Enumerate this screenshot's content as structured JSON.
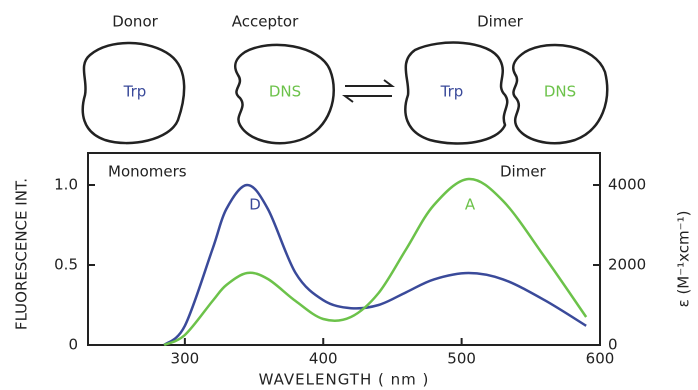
{
  "diagram": {
    "donor_label": "Donor",
    "acceptor_label": "Acceptor",
    "dimer_label": "Dimer",
    "donor_inner": "Trp",
    "acceptor_inner": "DNS",
    "dimer_donor_inner": "Trp",
    "dimer_acceptor_inner": "DNS"
  },
  "chart_data": {
    "type": "line",
    "x_label": "WAVELENGTH ( nm )",
    "y_label": "FLUORESCENCE INT.",
    "y2_label": "ε (M⁻¹xcm⁻¹)",
    "annotations": [
      "Monomers",
      "Dimer",
      "D",
      "A"
    ],
    "x": [
      285,
      300,
      320,
      330,
      345,
      360,
      380,
      400,
      420,
      440,
      460,
      480,
      505,
      530,
      560,
      590
    ],
    "series": [
      {
        "name": "D",
        "color": "#3a4a9a",
        "values": [
          0,
          0.12,
          0.6,
          0.85,
          1.0,
          0.85,
          0.45,
          0.28,
          0.23,
          0.25,
          0.33,
          0.41,
          0.45,
          0.41,
          0.28,
          0.12
        ]
      },
      {
        "name": "A",
        "color": "#6cc24a",
        "axis": "y2",
        "values": [
          0,
          250,
          1100,
          1500,
          1800,
          1650,
          1100,
          650,
          700,
          1300,
          2400,
          3500,
          4150,
          3600,
          2200,
          700
        ]
      }
    ],
    "xlim": [
      230,
      600
    ],
    "xticks": [
      300,
      400,
      500,
      600
    ],
    "ylim": [
      0,
      1.2
    ],
    "yticks": [
      0,
      0.5,
      {
        "value": 1,
        "label": "1.0"
      }
    ],
    "y2lim": [
      0,
      4800
    ],
    "y2ticks": [
      0,
      2000,
      4000
    ]
  }
}
